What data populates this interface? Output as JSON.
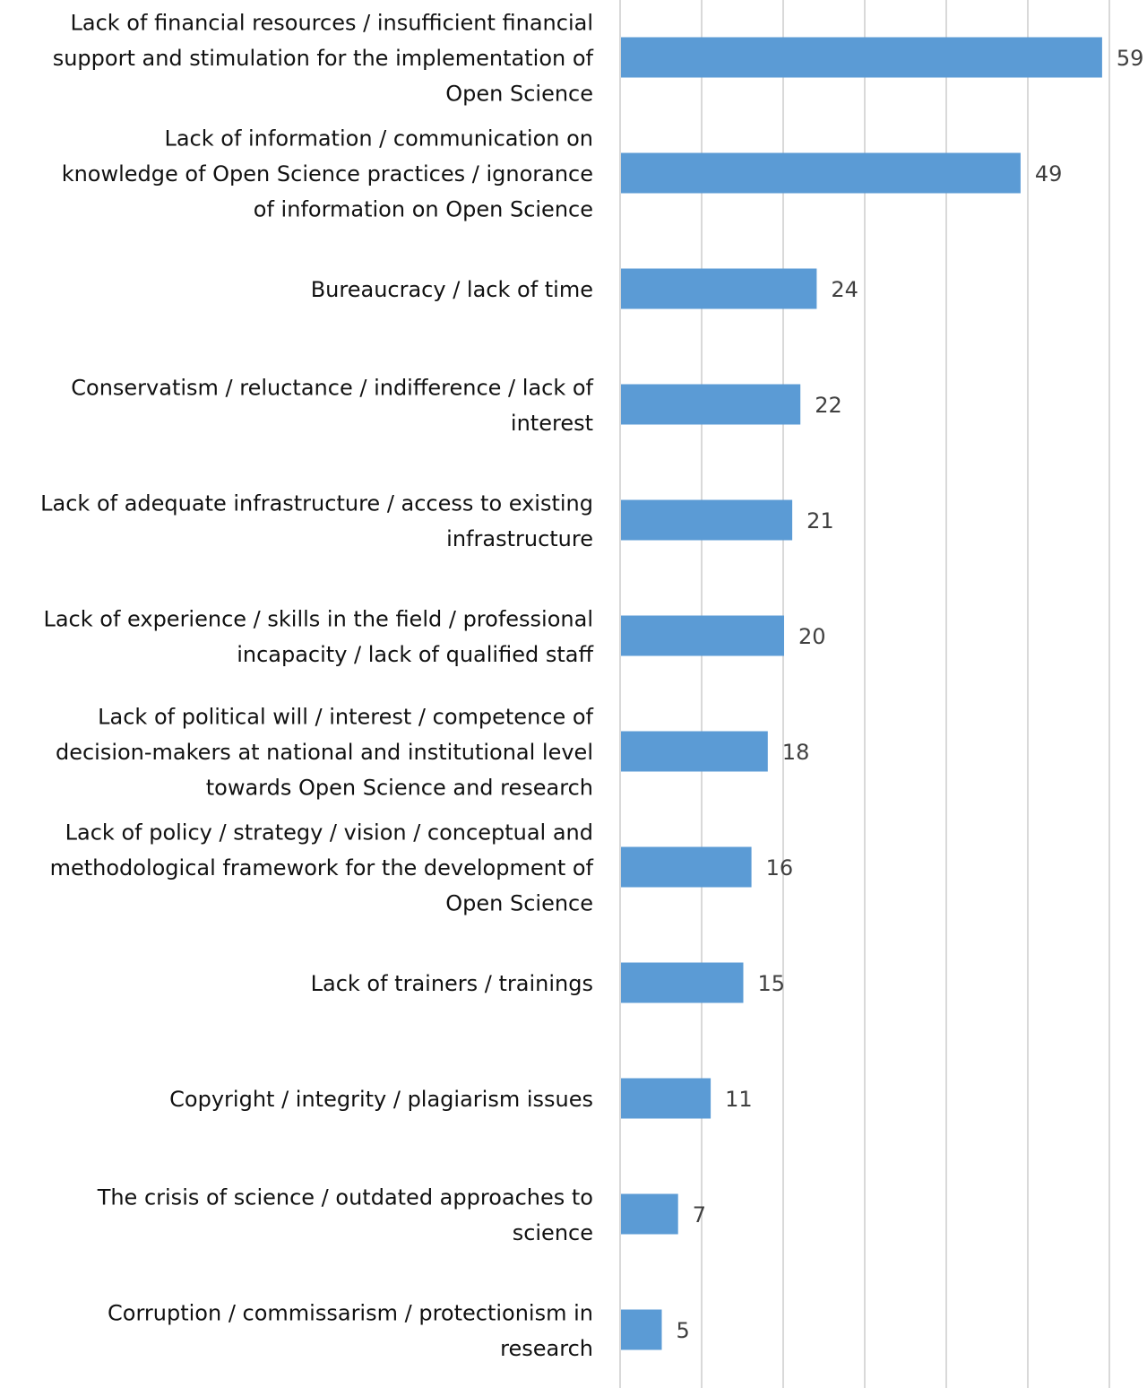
{
  "chart_data": {
    "type": "bar",
    "orientation": "horizontal",
    "categories": [
      [
        "Lack of financial resources / insufficient financial",
        "support and stimulation for the implementation of",
        "Open Science"
      ],
      [
        "Lack of information / communication on",
        "knowledge of Open Science practices / ignorance",
        "of information on Open Science"
      ],
      [
        "Bureaucracy / lack of time"
      ],
      [
        "Conservatism / reluctance / indifference / lack of",
        "interest"
      ],
      [
        "Lack of adequate infrastructure / access to existing",
        "infrastructure"
      ],
      [
        "Lack of experience / skills in the field / professional",
        "incapacity / lack of qualified staff"
      ],
      [
        "Lack of political will / interest / competence of",
        "decision-makers at national and institutional level",
        "towards Open Science and research"
      ],
      [
        "Lack of policy / strategy / vision / conceptual and",
        "methodological framework for the development of",
        "Open Science"
      ],
      [
        "Lack of trainers / trainings"
      ],
      [
        "Copyright / integrity / plagiarism issues"
      ],
      [
        "The crisis of science / outdated approaches to",
        "science"
      ],
      [
        "Corruption / commissarism / protectionism in",
        "research"
      ]
    ],
    "values": [
      59,
      49,
      24,
      22,
      21,
      20,
      18,
      16,
      15,
      11,
      7,
      5
    ],
    "data_labels": [
      "59",
      "49",
      "24",
      "22",
      "21",
      "20",
      "18",
      "16",
      "15",
      "11",
      "7",
      "5"
    ],
    "xlim": [
      0,
      60
    ],
    "grid": "vertical gridlines every 10",
    "legend": "none",
    "colors": {
      "bar": "#5B9BD5",
      "grid": "#D9D9D9"
    }
  }
}
